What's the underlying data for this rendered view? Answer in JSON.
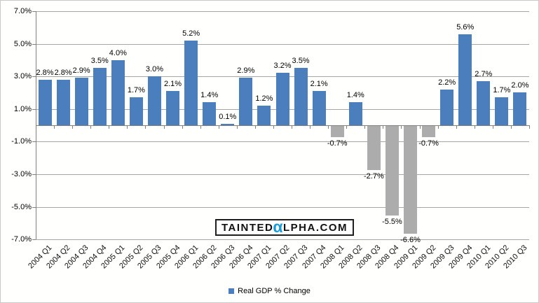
{
  "chart_data": {
    "type": "bar",
    "title": "",
    "xlabel": "",
    "ylabel": "",
    "categories": [
      "2004 Q1",
      "2004 Q2",
      "2004 Q3",
      "2004 Q4",
      "2005 Q1",
      "2005 Q2",
      "2005 Q3",
      "2005 Q4",
      "2006 Q1",
      "2006 Q2",
      "2006 Q3",
      "2006 Q4",
      "2007 Q1",
      "2007 Q2",
      "2007 Q3",
      "2007 Q4",
      "2008 Q1",
      "2008 Q2",
      "2008 Q3",
      "2008 Q4",
      "2009 Q1",
      "2009 Q2",
      "2009 Q3",
      "2009 Q4",
      "2010 Q1",
      "2010 Q2",
      "2010 Q3"
    ],
    "series": [
      {
        "name": "Real GDP % Change",
        "values": [
          2.8,
          2.8,
          2.9,
          3.5,
          4.0,
          1.7,
          3.0,
          2.1,
          5.2,
          1.4,
          0.1,
          2.9,
          1.2,
          3.2,
          3.5,
          2.1,
          -0.7,
          1.4,
          -2.7,
          -5.5,
          -6.6,
          -0.7,
          2.2,
          5.6,
          2.7,
          1.7,
          2.0
        ]
      }
    ],
    "data_labels": [
      "2.8%",
      "2.8%",
      "2.9%",
      "3.5%",
      "4.0%",
      "1.7%",
      "3.0%",
      "2.1%",
      "5.2%",
      "1.4%",
      "0.1%",
      "2.9%",
      "1.2%",
      "3.2%",
      "3.5%",
      "2.1%",
      "-0.7%",
      "1.4%",
      "-2.7%",
      "-5.5%",
      "-6.6%",
      "-0.7%",
      "2.2%",
      "5.6%",
      "2.7%",
      "1.7%",
      "2.0%"
    ],
    "ylim": [
      -7,
      7
    ],
    "yticks": [
      7,
      5,
      3,
      1,
      -1,
      -3,
      -5,
      -7
    ],
    "ytick_labels": [
      "7.0%",
      "5.0%",
      "3.0%",
      "1.0%",
      "-1.0%",
      "-3.0%",
      "-5.0%",
      "-7.0%"
    ],
    "grid": true,
    "legend_position": "bottom",
    "positive_color": "#4a7ebd",
    "negative_color": "#acacac"
  },
  "legend": {
    "label": "Real GDP % Change",
    "marker_color": "#4a7ebd"
  },
  "watermark": {
    "text_before_alpha": "TAINTED",
    "alpha_char": "α",
    "text_after_alpha": "LPHA.COM",
    "alpha_color": "#1b9cd8"
  }
}
